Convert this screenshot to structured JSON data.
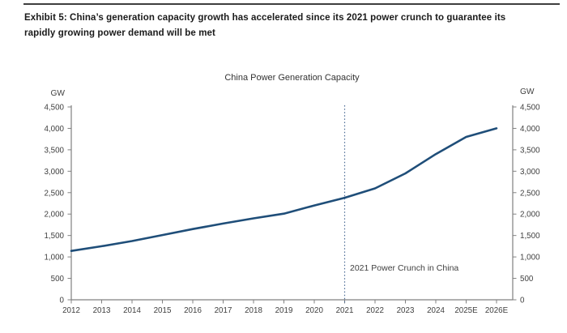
{
  "header": {
    "title_line1": "Exhibit 5: China’s generation capacity growth has accelerated since its 2021 power crunch to guarantee its",
    "title_line2": "rapidly growing power demand will be met"
  },
  "chart_data": {
    "type": "line",
    "title": "China Power Generation Capacity",
    "unit_left": "GW",
    "unit_right": "GW",
    "categories": [
      "2012",
      "2013",
      "2014",
      "2015",
      "2016",
      "2017",
      "2018",
      "2019",
      "2020",
      "2021",
      "2022",
      "2023",
      "2024",
      "2025E",
      "2026E"
    ],
    "series": [
      {
        "name": "China power generation capacity",
        "values": [
          1140,
          1250,
          1370,
          1510,
          1650,
          1780,
          1900,
          2010,
          2200,
          2380,
          2600,
          2950,
          3400,
          3800,
          4000
        ]
      }
    ],
    "ylim": [
      0,
      4500
    ],
    "ytick_step": 500,
    "yticks": [
      "0",
      "500",
      "1,000",
      "1,500",
      "2,000",
      "2,500",
      "3,000",
      "3,500",
      "4,000",
      "4,500"
    ],
    "dual_y_axis": true,
    "grid": false,
    "legend": "none",
    "annotation": {
      "text": "2021 Power Crunch in China",
      "x_category": "2021"
    },
    "colors": {
      "line": "#1f4e79",
      "event_line": "#4a6a94",
      "axis": "#808080",
      "text": "#404040"
    }
  }
}
